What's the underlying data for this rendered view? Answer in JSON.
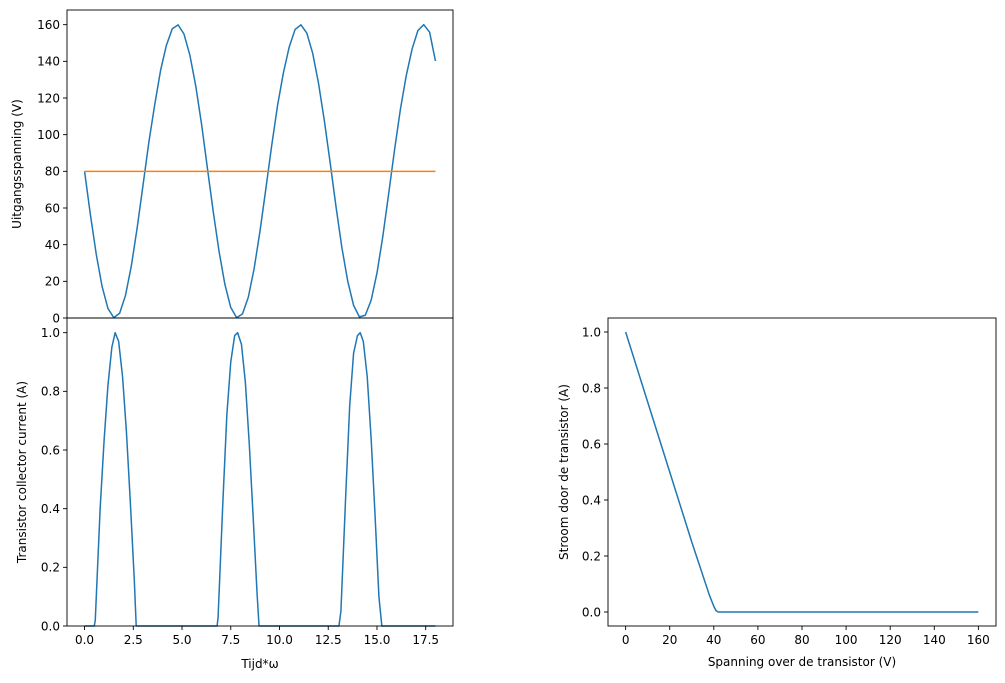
{
  "chart_data": [
    {
      "id": "top-left",
      "type": "line",
      "title": "",
      "xlabel": "",
      "ylabel": "Uitgangsspanning (V)",
      "xlim": [
        -0.9,
        18.9
      ],
      "ylim": [
        0,
        168
      ],
      "x_ticks_shown": false,
      "yticks": [
        0,
        20,
        40,
        60,
        80,
        100,
        120,
        140,
        160
      ],
      "ytick_labels": [
        "0",
        "20",
        "40",
        "60",
        "80",
        "100",
        "120",
        "140",
        "160"
      ],
      "grid": false,
      "series": [
        {
          "color": "#1f77b4",
          "x": [
            0.0,
            0.3,
            0.6,
            0.9,
            1.2,
            1.5,
            1.8,
            2.1,
            2.4,
            2.7,
            3.0,
            3.3,
            3.6,
            3.9,
            4.2,
            4.5,
            4.8,
            5.1,
            5.4,
            5.7,
            6.0,
            6.3,
            6.6,
            6.9,
            7.2,
            7.5,
            7.8,
            8.1,
            8.4,
            8.7,
            9.0,
            9.3,
            9.6,
            9.9,
            10.2,
            10.5,
            10.8,
            11.1,
            11.4,
            11.7,
            12.0,
            12.3,
            12.6,
            12.9,
            13.2,
            13.5,
            13.8,
            14.1,
            14.4,
            14.7,
            15.0,
            15.3,
            15.6,
            15.9,
            16.2,
            16.5,
            16.8,
            17.1,
            17.4,
            17.7,
            18.0
          ],
          "y": [
            80.0,
            56.4,
            34.8,
            17.2,
            5.2,
            0.2,
            2.6,
            12.3,
            28.4,
            49.2,
            72.5,
            96.0,
            116.4,
            135.1,
            148.8,
            157.8,
            159.9,
            154.9,
            143.5,
            126.8,
            105.9,
            81.9,
            58.1,
            36.3,
            18.3,
            5.7,
            0.2,
            2.2,
            11.3,
            27.0,
            47.4,
            70.5,
            94.1,
            115.9,
            133.7,
            147.9,
            157.4,
            159.9,
            155.4,
            144.5,
            128.2,
            107.7,
            84.6,
            60.6,
            38.4,
            20.1,
            6.9,
            0.6,
            1.5,
            9.6,
            24.5,
            44.5,
            67.8,
            91.6,
            113.7,
            132.1,
            146.7,
            156.8,
            160.0,
            155.9,
            140.2
          ]
        },
        {
          "color": "#ff7f0e",
          "x": [
            0.0,
            18.0
          ],
          "y": [
            80,
            80
          ]
        }
      ]
    },
    {
      "id": "bottom-left",
      "type": "line",
      "title": "",
      "xlabel": "Tijd*ω",
      "ylabel": "Transistor collector current (A)",
      "xlim": [
        -0.9,
        18.9
      ],
      "ylim": [
        0,
        1.05
      ],
      "xticks": [
        0.0,
        2.5,
        5.0,
        7.5,
        10.0,
        12.5,
        15.0,
        17.5
      ],
      "xtick_labels": [
        "0.0",
        "2.5",
        "5.0",
        "7.5",
        "10.0",
        "12.5",
        "15.0",
        "17.5"
      ],
      "yticks": [
        0.0,
        0.2,
        0.4,
        0.6,
        0.8,
        1.0
      ],
      "ytick_labels": [
        "0.0",
        "0.2",
        "0.4",
        "0.6",
        "0.8",
        "1.0"
      ],
      "grid": false,
      "series": [
        {
          "color": "#1f77b4",
          "x": [
            0.0,
            0.5,
            0.55,
            0.8,
            1.0,
            1.2,
            1.4,
            1.57,
            1.75,
            1.95,
            2.15,
            2.35,
            2.55,
            2.65,
            3.0,
            6.8,
            6.85,
            7.1,
            7.3,
            7.5,
            7.7,
            7.85,
            8.05,
            8.25,
            8.45,
            8.65,
            8.85,
            8.95,
            9.5,
            13.05,
            13.15,
            13.4,
            13.6,
            13.8,
            14.0,
            14.14,
            14.3,
            14.5,
            14.7,
            14.9,
            15.1,
            15.25,
            15.7,
            18.0
          ],
          "y": [
            0.0,
            0.0,
            0.02,
            0.4,
            0.63,
            0.82,
            0.95,
            1.0,
            0.97,
            0.85,
            0.66,
            0.42,
            0.16,
            0.0,
            0.0,
            0.0,
            0.03,
            0.43,
            0.72,
            0.9,
            0.99,
            1.0,
            0.96,
            0.83,
            0.62,
            0.37,
            0.11,
            0.0,
            0.0,
            0.0,
            0.05,
            0.45,
            0.75,
            0.93,
            0.99,
            1.0,
            0.97,
            0.85,
            0.64,
            0.38,
            0.1,
            0.0,
            0.0,
            0.0
          ]
        }
      ]
    },
    {
      "id": "bottom-right",
      "type": "line",
      "title": "",
      "xlabel": "Spanning over de transistor (V)",
      "ylabel": "Stroom door de transistor (A)",
      "xlim": [
        -8,
        168
      ],
      "ylim": [
        -0.05,
        1.05
      ],
      "xticks": [
        0,
        20,
        40,
        60,
        80,
        100,
        120,
        140,
        160
      ],
      "xtick_labels": [
        "0",
        "20",
        "40",
        "60",
        "80",
        "100",
        "120",
        "140",
        "160"
      ],
      "yticks": [
        0.0,
        0.2,
        0.4,
        0.6,
        0.8,
        1.0
      ],
      "ytick_labels": [
        "0.0",
        "0.2",
        "0.4",
        "0.6",
        "0.8",
        "1.0"
      ],
      "grid": false,
      "series": [
        {
          "color": "#1f77b4",
          "x": [
            0,
            10,
            20,
            30,
            38,
            40,
            41,
            42,
            44,
            50,
            80,
            120,
            160
          ],
          "y": [
            1.0,
            0.75,
            0.5,
            0.25,
            0.06,
            0.02,
            0.005,
            0.0,
            0.0,
            0.0,
            0.0,
            0.0,
            0.0
          ]
        }
      ]
    }
  ]
}
